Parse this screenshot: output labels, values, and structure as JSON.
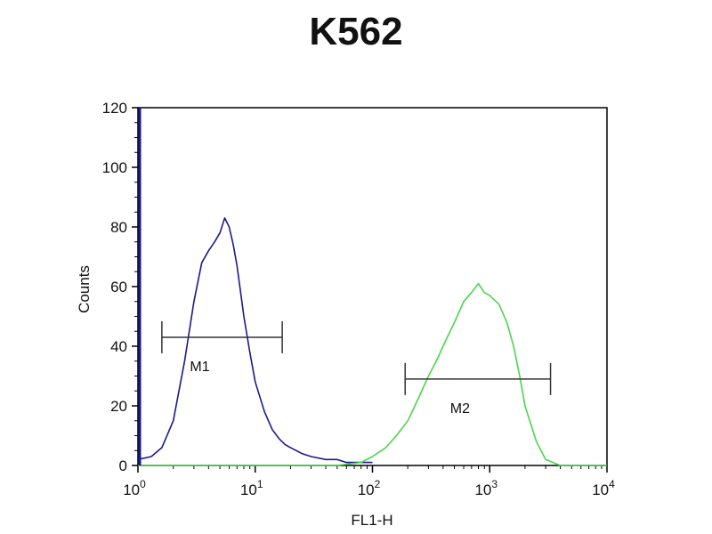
{
  "chart_data": {
    "type": "line",
    "title": "K562",
    "xlabel": "FL1-H",
    "ylabel": "Counts",
    "xscale": "log",
    "xlim": [
      1,
      10000
    ],
    "ylim": [
      0,
      120
    ],
    "x_ticks": [
      {
        "value": 1,
        "base": "10",
        "exp": "0"
      },
      {
        "value": 10,
        "base": "10",
        "exp": "1"
      },
      {
        "value": 100,
        "base": "10",
        "exp": "2"
      },
      {
        "value": 1000,
        "base": "10",
        "exp": "3"
      },
      {
        "value": 10000,
        "base": "10",
        "exp": "4"
      }
    ],
    "y_ticks": [
      0,
      20,
      40,
      60,
      80,
      100,
      120
    ],
    "grid": false,
    "legend": "none",
    "colors": {
      "series_1": "#1a1a8c",
      "series_2": "#4cd44c",
      "axis": "#000000"
    },
    "series": [
      {
        "x": [
          1,
          1.3,
          1.6,
          2,
          2.5,
          3,
          3.5,
          4,
          4.5,
          5,
          5.5,
          6,
          6.5,
          7,
          8,
          9,
          10,
          12,
          14,
          16,
          18,
          20,
          25,
          30,
          40,
          50,
          60,
          80,
          100
        ],
        "values": [
          2,
          3,
          6,
          15,
          35,
          55,
          68,
          72,
          75,
          78,
          83,
          80,
          74,
          67,
          50,
          38,
          28,
          18,
          12,
          9,
          7,
          6,
          4,
          3,
          2,
          2,
          1,
          1,
          1
        ]
      },
      {
        "x": [
          1,
          50,
          80,
          100,
          130,
          160,
          200,
          250,
          300,
          350,
          400,
          500,
          600,
          700,
          800,
          900,
          1000,
          1200,
          1400,
          1600,
          1800,
          2000,
          2500,
          3000,
          4000,
          10000
        ],
        "values": [
          0,
          0,
          1,
          3,
          6,
          10,
          15,
          23,
          30,
          35,
          40,
          48,
          55,
          58,
          61,
          58,
          57,
          54,
          48,
          40,
          30,
          20,
          8,
          2,
          0,
          0
        ]
      }
    ],
    "markers": [
      {
        "label": "M1",
        "x_start": 1.6,
        "x_end": 17,
        "y": 43
      },
      {
        "label": "M2",
        "x_start": 190,
        "x_end": 3300,
        "y": 29
      }
    ]
  }
}
